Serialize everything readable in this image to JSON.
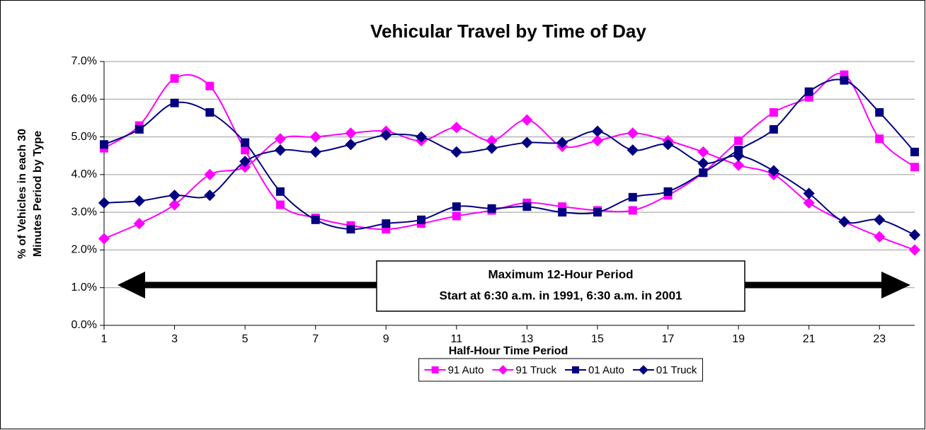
{
  "chart_data": {
    "type": "line",
    "title": "Vehicular Travel by Time of Day",
    "xlabel": "Half-Hour Time Period",
    "ylabel": [
      "% of Vehicles in each 30",
      "Minutes Period by Type"
    ],
    "annotation": [
      "Maximum 12-Hour Period",
      "Start at 6:30 a.m. in 1991, 6:30 a.m. in 2001"
    ],
    "x": [
      1,
      2,
      3,
      4,
      5,
      6,
      7,
      8,
      9,
      10,
      11,
      12,
      13,
      14,
      15,
      16,
      17,
      18,
      19,
      20,
      21,
      22,
      23,
      24
    ],
    "xlim": [
      1,
      24
    ],
    "xticks": [
      1,
      3,
      5,
      7,
      9,
      11,
      13,
      15,
      17,
      19,
      21,
      23
    ],
    "ylim": [
      0,
      7
    ],
    "yticks": [
      {
        "value": 0,
        "label": "0.0%"
      },
      {
        "value": 1,
        "label": "1.0%"
      },
      {
        "value": 2,
        "label": "2.0%"
      },
      {
        "value": 3,
        "label": "3.0%"
      },
      {
        "value": 4,
        "label": "4.0%"
      },
      {
        "value": 5,
        "label": "5.0%"
      },
      {
        "value": 6,
        "label": "6.0%"
      },
      {
        "value": 7,
        "label": "7.0%"
      }
    ],
    "grid": true,
    "legend": "bottom",
    "series": [
      {
        "name": "91 Auto",
        "color": "#ff00ff",
        "marker": "square",
        "values": [
          4.7,
          5.3,
          6.55,
          6.35,
          4.65,
          3.2,
          2.85,
          2.65,
          2.55,
          2.7,
          2.9,
          3.05,
          3.25,
          3.15,
          3.05,
          3.05,
          3.45,
          4.05,
          4.9,
          5.65,
          6.05,
          6.65,
          4.95,
          4.2
        ]
      },
      {
        "name": "91 Truck",
        "color": "#ff00ff",
        "marker": "diamond",
        "values": [
          2.3,
          2.7,
          3.2,
          4.0,
          4.2,
          4.95,
          5.0,
          5.1,
          5.15,
          4.9,
          5.25,
          4.9,
          5.45,
          4.75,
          4.9,
          5.1,
          4.9,
          4.6,
          4.25,
          4.0,
          3.25,
          2.75,
          2.35,
          2.0
        ]
      },
      {
        "name": "01 Auto",
        "color": "#000080",
        "marker": "square",
        "values": [
          4.8,
          5.2,
          5.9,
          5.65,
          4.85,
          3.55,
          2.8,
          2.55,
          2.7,
          2.8,
          3.15,
          3.1,
          3.15,
          3.0,
          3.0,
          3.4,
          3.55,
          4.05,
          4.65,
          5.2,
          6.2,
          6.5,
          5.65,
          4.6
        ]
      },
      {
        "name": "01 Truck",
        "color": "#000080",
        "marker": "diamond",
        "values": [
          3.25,
          3.3,
          3.45,
          3.45,
          4.35,
          4.65,
          4.6,
          4.8,
          5.05,
          5.0,
          4.6,
          4.7,
          4.85,
          4.85,
          5.15,
          4.65,
          4.8,
          4.3,
          4.5,
          4.1,
          3.5,
          2.75,
          2.8,
          2.4
        ]
      }
    ]
  }
}
